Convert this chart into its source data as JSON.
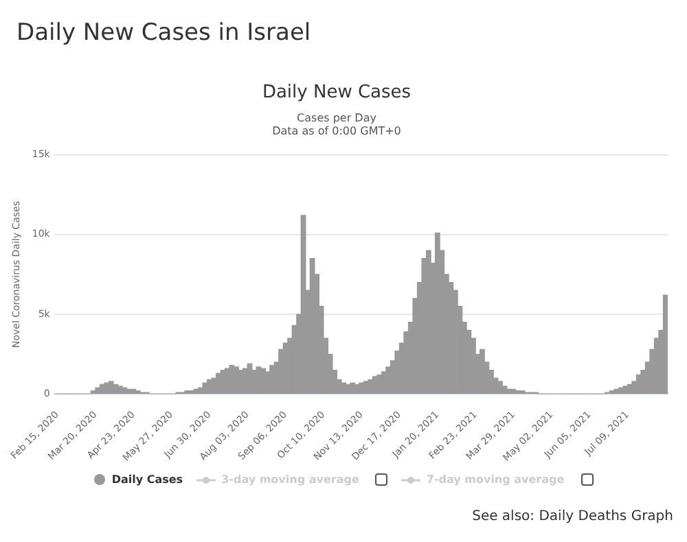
{
  "chart_data": {
    "type": "bar",
    "title": "Daily New Cases",
    "subtitle": "Cases per Day",
    "ylabel": "Novel Coronavirus Daily Cases",
    "annotations": [
      "Daily New Cases in Israel",
      "Data as of 0:00 GMT+0",
      "See also: Daily Deaths Graph"
    ],
    "x": [
      "2020-02-15",
      "2020-02-19",
      "2020-02-23",
      "2020-02-27",
      "2020-03-02",
      "2020-03-06",
      "2020-03-10",
      "2020-03-14",
      "2020-03-18",
      "2020-03-22",
      "2020-03-26",
      "2020-03-30",
      "2020-04-03",
      "2020-04-07",
      "2020-04-11",
      "2020-04-15",
      "2020-04-19",
      "2020-04-23",
      "2020-04-27",
      "2020-05-01",
      "2020-05-05",
      "2020-05-09",
      "2020-05-13",
      "2020-05-17",
      "2020-05-21",
      "2020-05-25",
      "2020-05-29",
      "2020-06-02",
      "2020-06-06",
      "2020-06-10",
      "2020-06-14",
      "2020-06-18",
      "2020-06-22",
      "2020-06-26",
      "2020-06-30",
      "2020-07-04",
      "2020-07-08",
      "2020-07-12",
      "2020-07-16",
      "2020-07-20",
      "2020-07-24",
      "2020-07-28",
      "2020-08-01",
      "2020-08-05",
      "2020-08-09",
      "2020-08-13",
      "2020-08-17",
      "2020-08-21",
      "2020-08-25",
      "2020-08-29",
      "2020-09-02",
      "2020-09-06",
      "2020-09-10",
      "2020-09-14",
      "2020-09-18",
      "2020-09-22",
      "2020-09-26",
      "2020-09-30",
      "2020-10-04",
      "2020-10-08",
      "2020-10-12",
      "2020-10-16",
      "2020-10-20",
      "2020-10-24",
      "2020-10-28",
      "2020-11-01",
      "2020-11-05",
      "2020-11-09",
      "2020-11-13",
      "2020-11-17",
      "2020-11-21",
      "2020-11-25",
      "2020-11-29",
      "2020-12-03",
      "2020-12-07",
      "2020-12-11",
      "2020-12-15",
      "2020-12-19",
      "2020-12-23",
      "2020-12-27",
      "2020-12-31",
      "2021-01-04",
      "2021-01-08",
      "2021-01-12",
      "2021-01-16",
      "2021-01-20",
      "2021-01-24",
      "2021-01-28",
      "2021-02-01",
      "2021-02-05",
      "2021-02-09",
      "2021-02-13",
      "2021-02-17",
      "2021-02-21",
      "2021-02-25",
      "2021-03-01",
      "2021-03-05",
      "2021-03-09",
      "2021-03-13",
      "2021-03-17",
      "2021-03-21",
      "2021-03-25",
      "2021-03-29",
      "2021-04-02",
      "2021-04-06",
      "2021-04-10",
      "2021-04-14",
      "2021-04-18",
      "2021-04-22",
      "2021-04-26",
      "2021-04-30",
      "2021-05-04",
      "2021-05-08",
      "2021-05-12",
      "2021-05-16",
      "2021-05-20",
      "2021-05-24",
      "2021-05-28",
      "2021-06-01",
      "2021-06-05",
      "2021-06-09",
      "2021-06-13",
      "2021-06-17",
      "2021-06-21",
      "2021-06-25",
      "2021-06-29",
      "2021-07-03",
      "2021-07-07",
      "2021-07-11",
      "2021-07-15",
      "2021-07-19",
      "2021-07-23",
      "2021-07-27",
      "2021-07-31",
      "2021-08-04",
      "2021-08-08",
      "2021-08-12"
    ],
    "series": [
      {
        "name": "Daily Cases",
        "color": "#999999",
        "values": [
          0,
          0,
          0,
          0,
          0,
          0,
          0,
          0,
          200,
          400,
          600,
          700,
          800,
          600,
          500,
          400,
          300,
          300,
          200,
          100,
          100,
          0,
          0,
          0,
          0,
          0,
          0,
          100,
          100,
          200,
          200,
          300,
          400,
          700,
          900,
          1000,
          1300,
          1500,
          1600,
          1800,
          1700,
          1500,
          1600,
          1900,
          1500,
          1700,
          1600,
          1400,
          1800,
          2000,
          2800,
          3200,
          3500,
          4300,
          5000,
          11200,
          6500,
          8500,
          7500,
          5500,
          3500,
          2500,
          1500,
          900,
          700,
          600,
          700,
          600,
          700,
          800,
          900,
          1100,
          1200,
          1400,
          1700,
          2100,
          2700,
          3200,
          3900,
          4500,
          6000,
          7000,
          8500,
          9000,
          8200,
          10100,
          9000,
          7500,
          7000,
          6500,
          5500,
          4500,
          4000,
          3500,
          2500,
          2800,
          2000,
          1500,
          1000,
          800,
          500,
          300,
          300,
          200,
          200,
          100,
          100,
          100,
          0,
          0,
          0,
          0,
          0,
          0,
          0,
          0,
          0,
          0,
          0,
          0,
          0,
          0,
          0,
          100,
          200,
          300,
          400,
          500,
          600,
          800,
          1200,
          1500,
          2000,
          2800,
          3500,
          4000,
          6200
        ]
      },
      {
        "name": "3-day moving average",
        "type": "line",
        "color": "#cccccc",
        "values": [
          null,
          null,
          null,
          null,
          null,
          null,
          null,
          null,
          null,
          null,
          null,
          null,
          null,
          null,
          null,
          null,
          null,
          null,
          null,
          null,
          null,
          null,
          null,
          null,
          null,
          null,
          null,
          null,
          null,
          null,
          null,
          null,
          null,
          null,
          null,
          null,
          null,
          null,
          null,
          null,
          null,
          null,
          null,
          null,
          null,
          null,
          null,
          null,
          null,
          null,
          null,
          null,
          null,
          null,
          null,
          null,
          null,
          null,
          null,
          null,
          null,
          null,
          null,
          null,
          null,
          null,
          null,
          null,
          null,
          null,
          null,
          null,
          null,
          null,
          null,
          null,
          null,
          null,
          null,
          null,
          null,
          null,
          null,
          null,
          null,
          null,
          null,
          null,
          null,
          null,
          null,
          null,
          null,
          null,
          null,
          null,
          null,
          null,
          null,
          null,
          null,
          null,
          null,
          null,
          null,
          null,
          null,
          null,
          null,
          null,
          null,
          null,
          null,
          null,
          null,
          null,
          null,
          null,
          null,
          null,
          null,
          null,
          null,
          null,
          null,
          null,
          null,
          null,
          null,
          null,
          null,
          null,
          null,
          null,
          null,
          null,
          null
        ]
      },
      {
        "name": "7-day moving average",
        "type": "line",
        "color": "#cccccc",
        "values": [
          null,
          null,
          null,
          null,
          null,
          null,
          null,
          null,
          null,
          null,
          null,
          null,
          null,
          null,
          null,
          null,
          null,
          null,
          null,
          null,
          null,
          null,
          null,
          null,
          null,
          null,
          null,
          null,
          null,
          null,
          null,
          null,
          null,
          null,
          null,
          null,
          null,
          null,
          null,
          null,
          null,
          null,
          null,
          null,
          null,
          null,
          null,
          null,
          null,
          null,
          null,
          null,
          null,
          null,
          null,
          null,
          null,
          null,
          null,
          null,
          null,
          null,
          null,
          null,
          null,
          null,
          null,
          null,
          null,
          null,
          null,
          null,
          null,
          null,
          null,
          null,
          null,
          null,
          null,
          null,
          null,
          null,
          null,
          null,
          null,
          null,
          null,
          null,
          null,
          null,
          null,
          null,
          null,
          null,
          null,
          null,
          null,
          null,
          null,
          null,
          null,
          null,
          null,
          null,
          null,
          null,
          null,
          null,
          null,
          null,
          null,
          null,
          null,
          null,
          null,
          null,
          null,
          null,
          null,
          null,
          null,
          null,
          null,
          null,
          null,
          null,
          null,
          null,
          null,
          null,
          null,
          null,
          null,
          null,
          null,
          null,
          null
        ]
      }
    ],
    "xlim": [
      "2020-02-12",
      "2021-08-14"
    ],
    "xticks": [
      {
        "value": "2020-02-15",
        "label": "Feb 15, 2020"
      },
      {
        "value": "2020-03-20",
        "label": "Mar 20, 2020"
      },
      {
        "value": "2020-04-23",
        "label": "Apr 23, 2020"
      },
      {
        "value": "2020-05-27",
        "label": "May 27, 2020"
      },
      {
        "value": "2020-06-30",
        "label": "Jun 30, 2020"
      },
      {
        "value": "2020-08-03",
        "label": "Aug 03, 2020"
      },
      {
        "value": "2020-09-06",
        "label": "Sep 06, 2020"
      },
      {
        "value": "2020-10-10",
        "label": "Oct 10, 2020"
      },
      {
        "value": "2020-11-13",
        "label": "Nov 13, 2020"
      },
      {
        "value": "2020-12-17",
        "label": "Dec 17, 2020"
      },
      {
        "value": "2021-01-20",
        "label": "Jan 20, 2021"
      },
      {
        "value": "2021-02-23",
        "label": "Feb 23, 2021"
      },
      {
        "value": "2021-03-29",
        "label": "Mar 29, 2021"
      },
      {
        "value": "2021-05-02",
        "label": "May 02, 2021"
      },
      {
        "value": "2021-06-05",
        "label": "Jun 05, 2021"
      },
      {
        "value": "2021-07-09",
        "label": "Jul 09, 2021"
      }
    ],
    "ylim": [
      0,
      15000
    ],
    "yticks": [
      0,
      {
        "value": 5000,
        "label": "5k"
      },
      {
        "value": 10000,
        "label": "10k"
      },
      {
        "value": 15000,
        "label": "15k"
      }
    ],
    "grid": "y",
    "legend": "bottom",
    "marker": "circle"
  }
}
